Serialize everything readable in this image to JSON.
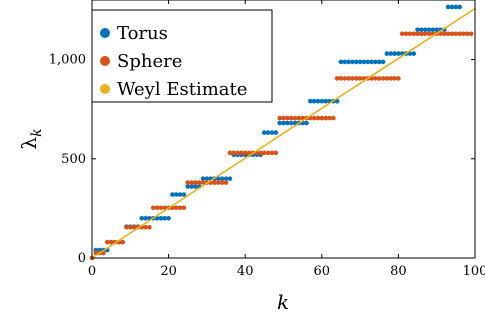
{
  "chart_data": {
    "type": "scatter",
    "xlabel": "k",
    "ylabel_main": "λ",
    "ylabel_sub": "k",
    "xlim": [
      0,
      100
    ],
    "ylim": [
      0,
      1300
    ],
    "x_ticks": [
      0,
      20,
      40,
      60,
      80,
      100
    ],
    "x_tick_labels": [
      "0",
      "20",
      "40",
      "60",
      "80",
      "100"
    ],
    "y_ticks": [
      0,
      500,
      1000
    ],
    "y_tick_labels": [
      "0",
      "500",
      "1,000"
    ],
    "grid": false,
    "legend_position": "top-left",
    "torus_levels": [
      {
        "value": 0,
        "count": 1
      },
      {
        "value": 40,
        "count": 4
      },
      {
        "value": 80,
        "count": 4
      },
      {
        "value": 158,
        "count": 4
      },
      {
        "value": 200,
        "count": 8
      },
      {
        "value": 320,
        "count": 4
      },
      {
        "value": 360,
        "count": 4
      },
      {
        "value": 400,
        "count": 8
      },
      {
        "value": 520,
        "count": 8
      },
      {
        "value": 632,
        "count": 4
      },
      {
        "value": 680,
        "count": 8
      },
      {
        "value": 790,
        "count": 8
      },
      {
        "value": 988,
        "count": 12
      },
      {
        "value": 1030,
        "count": 8
      },
      {
        "value": 1150,
        "count": 8
      },
      {
        "value": 1265,
        "count": 4
      }
    ],
    "sphere_levels": [
      {
        "value": 0,
        "count": 1
      },
      {
        "value": 25,
        "count": 3
      },
      {
        "value": 80,
        "count": 5
      },
      {
        "value": 155,
        "count": 7
      },
      {
        "value": 253,
        "count": 9
      },
      {
        "value": 380,
        "count": 11
      },
      {
        "value": 530,
        "count": 13
      },
      {
        "value": 705,
        "count": 15
      },
      {
        "value": 905,
        "count": 17
      },
      {
        "value": 1130,
        "count": 19
      }
    ],
    "series": [
      {
        "name": "Torus",
        "color": "#0072bd",
        "type": "scatter"
      },
      {
        "name": "Sphere",
        "color": "#d95319",
        "type": "scatter"
      },
      {
        "name": "Weyl Estimate",
        "color": "#edb120",
        "type": "line",
        "x": [
          0,
          100
        ],
        "y": [
          0,
          1257
        ]
      }
    ]
  }
}
